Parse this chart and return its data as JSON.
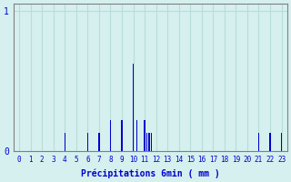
{
  "xlabel": "Précipitations 6min ( mm )",
  "background_color": "#d5f0ef",
  "bar_color": "#0000cc",
  "grid_color": "#b8ddd9",
  "axis_color": "#808080",
  "text_color": "#0000cc",
  "xlim": [
    -0.5,
    23.5
  ],
  "ylim": [
    0,
    1.05
  ],
  "yticks": [
    0,
    1
  ],
  "xticks": [
    0,
    1,
    2,
    3,
    4,
    5,
    6,
    7,
    8,
    9,
    10,
    11,
    12,
    13,
    14,
    15,
    16,
    17,
    18,
    19,
    20,
    21,
    22,
    23
  ],
  "bar_positions": [
    4,
    6,
    7,
    8,
    9,
    10,
    10.3,
    11,
    11.2,
    11.4,
    11.6,
    21,
    22,
    23
  ],
  "bar_heights": [
    0.13,
    0.13,
    0.13,
    0.22,
    0.22,
    0.62,
    0.22,
    0.22,
    0.13,
    0.13,
    0.13,
    0.13,
    0.13,
    0.13
  ],
  "bar_width": 0.12
}
